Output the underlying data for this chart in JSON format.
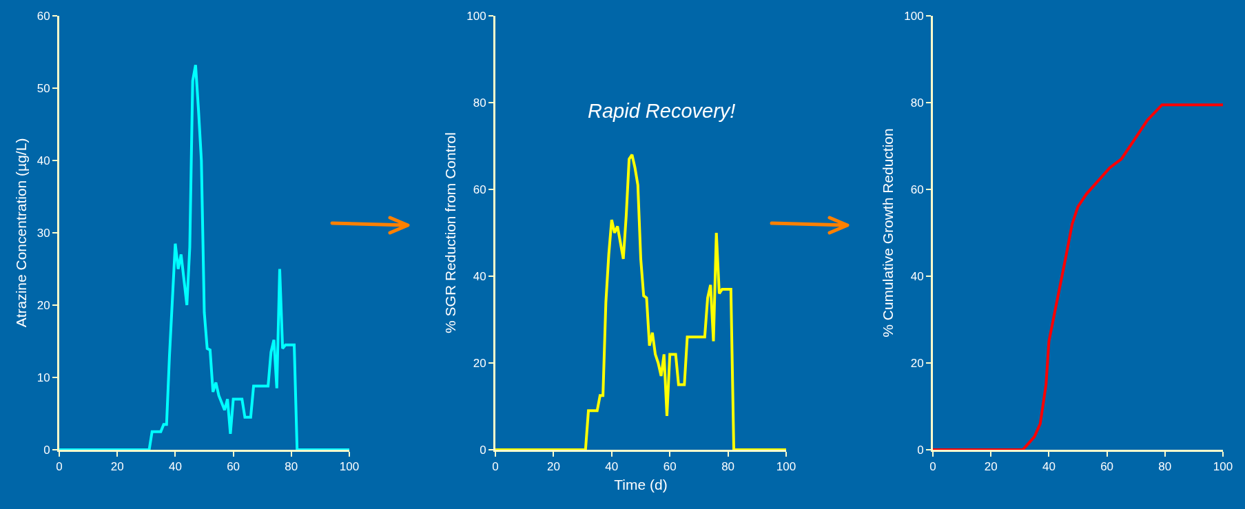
{
  "chart_data": [
    {
      "type": "line",
      "ylabel": "Atrazine Concentration (µg/L)",
      "x": [
        0,
        31,
        32,
        35,
        36,
        37,
        38,
        40,
        41,
        42,
        44,
        45,
        46,
        47,
        48,
        49,
        50,
        51,
        52,
        53,
        54,
        55,
        57,
        58,
        59,
        60,
        63,
        64,
        66,
        67,
        72,
        73,
        74,
        75,
        76,
        77,
        78,
        81,
        82,
        100
      ],
      "xlim": [
        0,
        100
      ],
      "xticks": [
        0,
        20,
        40,
        60,
        80,
        100
      ],
      "ylim": [
        0,
        60
      ],
      "yticks": [
        0,
        10,
        20,
        30,
        40,
        50,
        60
      ],
      "series": [
        {
          "color": "#00ffff",
          "values": [
            0,
            0,
            2.5,
            2.5,
            3.5,
            3.5,
            13,
            28.5,
            25,
            27,
            20,
            28,
            51,
            53.2,
            47,
            40,
            19,
            14,
            13.8,
            8,
            9.3,
            7.5,
            5.5,
            7,
            2.2,
            7,
            7,
            4.5,
            4.5,
            8.8,
            8.8,
            13.5,
            15.2,
            8.5,
            25,
            14,
            14.5,
            14.5,
            0,
            0
          ]
        }
      ]
    },
    {
      "type": "line",
      "ylabel": "% SGR Reduction from Control",
      "xlabel": "Time (d)",
      "annotations": [
        "Rapid Recovery!"
      ],
      "x": [
        0,
        31,
        32,
        35,
        36,
        37,
        38,
        39,
        40,
        41,
        42,
        44,
        45,
        46,
        47,
        48,
        49,
        50,
        51,
        52,
        53,
        54,
        55,
        56,
        57,
        58,
        59,
        60,
        62,
        63,
        65,
        66,
        72,
        73,
        74,
        75,
        76,
        77,
        78,
        81,
        82,
        100
      ],
      "xlim": [
        0,
        100
      ],
      "xticks": [
        0,
        20,
        40,
        60,
        80,
        100
      ],
      "ylim": [
        0,
        100
      ],
      "yticks": [
        0,
        20,
        40,
        60,
        80,
        100
      ],
      "series": [
        {
          "color": "#ffff00",
          "values": [
            0,
            0,
            9,
            9,
            12.5,
            12.5,
            34,
            45,
            53,
            50,
            51.5,
            44,
            54,
            67,
            68,
            65,
            61,
            44,
            35.5,
            35,
            24,
            27,
            22,
            20,
            17,
            22,
            7.8,
            22,
            22,
            15,
            15,
            26,
            26,
            35,
            38,
            25,
            50,
            36,
            37,
            37,
            0,
            0
          ]
        }
      ]
    },
    {
      "type": "line",
      "ylabel": "% Cumulative Growth Reduction",
      "x": [
        0,
        31,
        35,
        37,
        39,
        40,
        43,
        46,
        48,
        50,
        53,
        57,
        61,
        65,
        70,
        74,
        79,
        100
      ],
      "xlim": [
        0,
        100
      ],
      "xticks": [
        0,
        20,
        40,
        60,
        80,
        100
      ],
      "ylim": [
        0,
        100
      ],
      "yticks": [
        0,
        20,
        40,
        60,
        80,
        100
      ],
      "series": [
        {
          "color": "#ff0000",
          "values": [
            0,
            0,
            3,
            6,
            15,
            25,
            35,
            45,
            52,
            56,
            59,
            62,
            65,
            67,
            72,
            76,
            79.5,
            79.5
          ]
        }
      ]
    }
  ]
}
